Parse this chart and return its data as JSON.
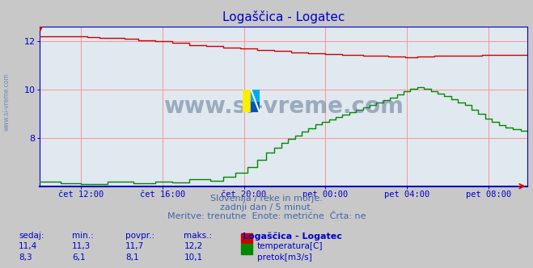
{
  "title": "Logaščica - Logatec",
  "bg_color": "#c8c8c8",
  "plot_bg_color": "#e0e8f0",
  "title_color": "#0000cc",
  "grid_color": "#ff8888",
  "axis_color": "#0000cc",
  "xaxis_line_color": "#0000bb",
  "watermark_text": "www.si-vreme.com",
  "watermark_color": "#4a6080",
  "watermark_alpha": 0.45,
  "watermark_fontsize": 20,
  "subtitle_lines": [
    "Slovenija / reke in morje.",
    "zadnji dan / 5 minut.",
    "Meritve: trenutne  Enote: metrične  Črta: ne"
  ],
  "subtitle_color": "#4466aa",
  "subtitle_fontsize": 8,
  "table_header": [
    "sedaj:",
    "min.:",
    "povpr.:",
    "maks.:",
    "Logaščica - Logatec"
  ],
  "table_color": "#0000cc",
  "table_data": [
    [
      "11,4",
      "11,3",
      "11,7",
      "12,2",
      "temperatura[C]"
    ],
    [
      "8,3",
      "6,1",
      "8,1",
      "10,1",
      "pretok[m3/s]"
    ]
  ],
  "temp_color": "#cc0000",
  "flow_color": "#008800",
  "tick_color": "#0000cc",
  "tick_fontsize": 7.5,
  "ytick_fontsize": 8,
  "ylim_min": 6.0,
  "ylim_max": 12.6,
  "yticks": [
    8,
    10,
    12
  ],
  "n_points": 288,
  "tick_positions": [
    24,
    72,
    120,
    168,
    216,
    264
  ],
  "tick_labels": [
    "čet 12:00",
    "čet 16:00",
    "čet 20:00",
    "pet 00:00",
    "pet 04:00",
    "pet 08:00"
  ],
  "logo_yellow": "#ffee00",
  "logo_blue": "#0055bb",
  "logo_cyan": "#00aaee"
}
